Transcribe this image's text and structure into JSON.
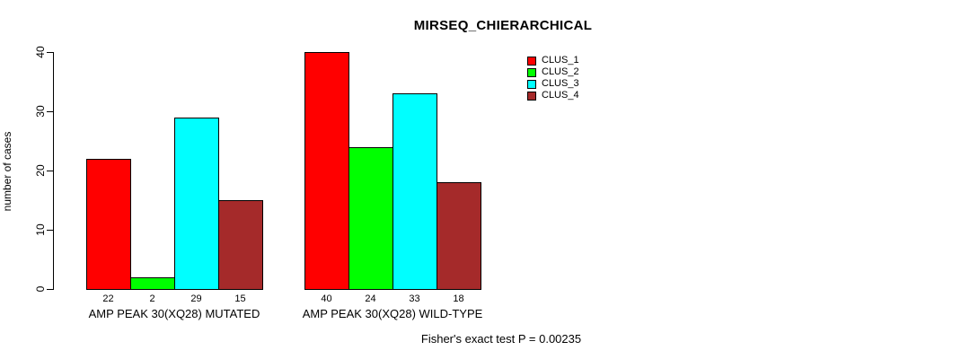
{
  "chart_data": {
    "type": "bar",
    "title": "MIRSEQ_CHIERARCHICAL",
    "ylabel": "number of cases",
    "xlabel": "",
    "ylim": [
      0,
      40
    ],
    "yticks": [
      0,
      10,
      20,
      30,
      40
    ],
    "grid": false,
    "legend_position": "top-right",
    "bar_border_color": "#000000",
    "background_color": "#ffffff",
    "categories": [
      "AMP PEAK 30(XQ28) MUTATED",
      "AMP PEAK 30(XQ28) WILD-TYPE"
    ],
    "series": [
      {
        "name": "CLUS_1",
        "color": "#ff0000",
        "values": [
          22,
          40
        ]
      },
      {
        "name": "CLUS_2",
        "color": "#00ff00",
        "values": [
          2,
          24
        ]
      },
      {
        "name": "CLUS_3",
        "color": "#00ffff",
        "values": [
          29,
          33
        ]
      },
      {
        "name": "CLUS_4",
        "color": "#a52a2a",
        "values": [
          15,
          18
        ]
      }
    ],
    "groups": [
      {
        "label": "AMP PEAK 30(XQ28) MUTATED",
        "values": [
          22,
          2,
          29,
          15
        ]
      },
      {
        "label": "AMP PEAK 30(XQ28) WILD-TYPE",
        "values": [
          40,
          24,
          33,
          18
        ]
      }
    ],
    "value_labels_shown": true,
    "annotation": "Fisher's exact test P = 0.00235"
  }
}
